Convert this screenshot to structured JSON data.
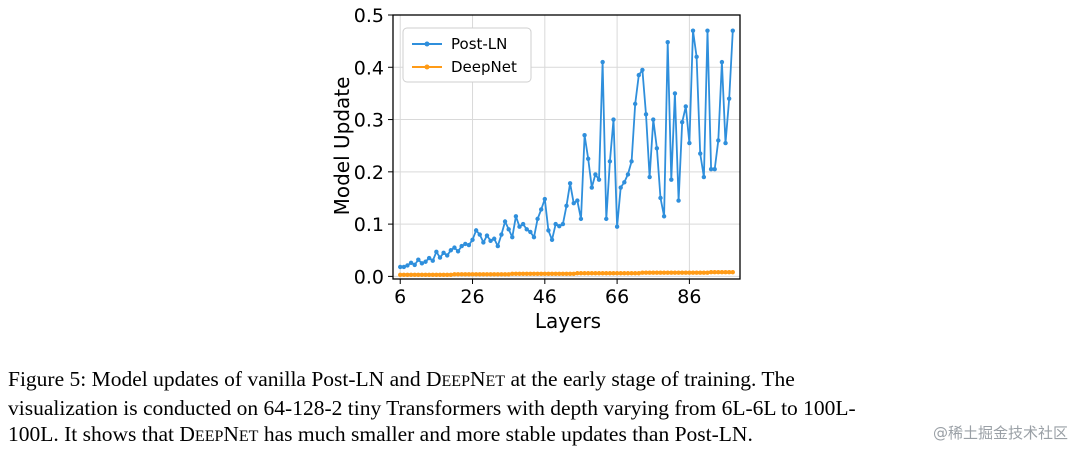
{
  "chart_data": {
    "type": "line",
    "xlabel": "Layers",
    "ylabel": "Model Update",
    "xlim": [
      4,
      100
    ],
    "ylim": [
      -0.005,
      0.5
    ],
    "xticks": [
      6,
      26,
      46,
      66,
      86
    ],
    "yticks": [
      0.0,
      0.1,
      0.2,
      0.3,
      0.4,
      0.5
    ],
    "ytick_labels": [
      "0.0",
      "0.1",
      "0.2",
      "0.3",
      "0.4",
      "0.5"
    ],
    "grid": true,
    "legend_position": "top-left",
    "x": [
      6,
      7,
      8,
      9,
      10,
      11,
      12,
      13,
      14,
      15,
      16,
      17,
      18,
      19,
      20,
      21,
      22,
      23,
      24,
      25,
      26,
      27,
      28,
      29,
      30,
      31,
      32,
      33,
      34,
      35,
      36,
      37,
      38,
      39,
      40,
      41,
      42,
      43,
      44,
      45,
      46,
      47,
      48,
      49,
      50,
      51,
      52,
      53,
      54,
      55,
      56,
      57,
      58,
      59,
      60,
      61,
      62,
      63,
      64,
      65,
      66,
      67,
      68,
      69,
      70,
      71,
      72,
      73,
      74,
      75,
      76,
      77,
      78,
      79,
      80,
      81,
      82,
      83,
      84,
      85,
      86,
      87,
      88,
      89,
      90,
      91,
      92,
      93,
      94,
      95,
      96,
      97,
      98
    ],
    "series": [
      {
        "name": "Post-LN",
        "color": "#2f8fdc",
        "values": [
          0.018,
          0.018,
          0.021,
          0.026,
          0.022,
          0.032,
          0.025,
          0.028,
          0.035,
          0.03,
          0.047,
          0.036,
          0.045,
          0.04,
          0.05,
          0.055,
          0.048,
          0.058,
          0.062,
          0.06,
          0.07,
          0.088,
          0.08,
          0.065,
          0.078,
          0.068,
          0.072,
          0.058,
          0.08,
          0.105,
          0.09,
          0.075,
          0.115,
          0.095,
          0.1,
          0.09,
          0.085,
          0.075,
          0.11,
          0.128,
          0.148,
          0.088,
          0.07,
          0.1,
          0.096,
          0.1,
          0.135,
          0.178,
          0.14,
          0.145,
          0.11,
          0.27,
          0.225,
          0.17,
          0.195,
          0.185,
          0.41,
          0.11,
          0.22,
          0.3,
          0.095,
          0.17,
          0.18,
          0.195,
          0.22,
          0.33,
          0.385,
          0.395,
          0.31,
          0.19,
          0.3,
          0.245,
          0.15,
          0.115,
          0.448,
          0.185,
          0.35,
          0.145,
          0.295,
          0.325,
          0.255,
          0.47,
          0.42,
          0.235,
          0.19,
          0.47,
          0.205,
          0.205,
          0.26,
          0.41,
          0.255,
          0.34,
          0.47
        ]
      },
      {
        "name": "DeepNet",
        "color": "#ff9b17",
        "values": [
          0.003,
          0.003,
          0.003,
          0.003,
          0.003,
          0.003,
          0.003,
          0.003,
          0.003,
          0.003,
          0.003,
          0.003,
          0.003,
          0.003,
          0.003,
          0.004,
          0.004,
          0.004,
          0.004,
          0.004,
          0.004,
          0.004,
          0.004,
          0.004,
          0.004,
          0.004,
          0.004,
          0.004,
          0.004,
          0.004,
          0.004,
          0.005,
          0.005,
          0.005,
          0.005,
          0.005,
          0.005,
          0.005,
          0.005,
          0.005,
          0.005,
          0.005,
          0.005,
          0.005,
          0.005,
          0.005,
          0.005,
          0.005,
          0.005,
          0.006,
          0.006,
          0.006,
          0.006,
          0.006,
          0.006,
          0.006,
          0.006,
          0.006,
          0.006,
          0.006,
          0.006,
          0.006,
          0.006,
          0.006,
          0.006,
          0.006,
          0.006,
          0.007,
          0.007,
          0.007,
          0.007,
          0.007,
          0.007,
          0.007,
          0.007,
          0.007,
          0.007,
          0.007,
          0.007,
          0.007,
          0.007,
          0.007,
          0.007,
          0.007,
          0.007,
          0.007,
          0.008,
          0.008,
          0.008,
          0.008,
          0.008,
          0.008,
          0.008
        ]
      }
    ]
  },
  "caption": {
    "line1_a": "Figure 5: Model updates of vanilla Post-LN and D",
    "line1_sc": "EEP",
    "line1_b": "N",
    "line1_sc2": "ET",
    "line1_c": " at the early stage of training.  The",
    "line2": "visualization is conducted on 64-128-2 tiny Transformers with depth varying from 6L-6L to 100L-",
    "line3_a": "100L. It shows that D",
    "line3_sc": "EEP",
    "line3_b": "N",
    "line3_sc2": "ET",
    "line3_c": " has much smaller and more stable updates than Post-LN."
  },
  "watermark": "@稀土掘金技术社区"
}
